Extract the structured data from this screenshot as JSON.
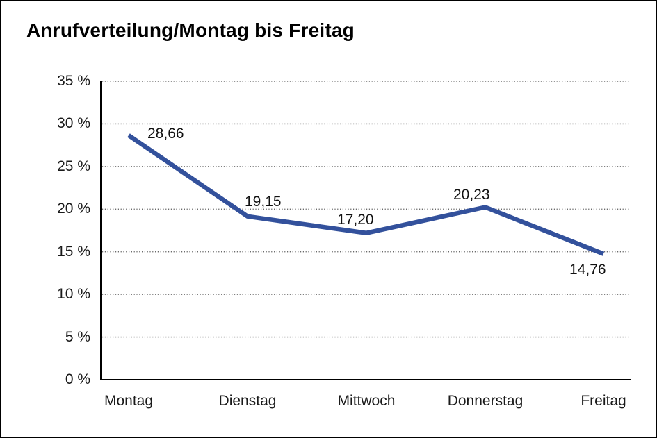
{
  "frame": {
    "background": "#ffffff",
    "border_color": "#000000"
  },
  "title": "Anrufverteilung/Montag bis Freitag",
  "chart_data": {
    "type": "line",
    "title": "Anrufverteilung/Montag bis Freitag",
    "categories": [
      "Montag",
      "Dienstag",
      "Mittwoch",
      "Donnerstag",
      "Freitag"
    ],
    "values": [
      28.66,
      19.15,
      17.2,
      20.23,
      14.76
    ],
    "point_labels": [
      "28,66",
      "19,15",
      "17,20",
      "20,23",
      "14,76"
    ],
    "y_tick_labels_top_to_bottom": [
      "35 %",
      "30 %",
      "25 %",
      "20 %",
      "15 %",
      "10 %",
      "5 %",
      "0 %"
    ],
    "y_tick_values_top_to_bottom": [
      35,
      30,
      25,
      20,
      15,
      10,
      5,
      0
    ],
    "xlabel": "",
    "ylabel": "",
    "ylim": [
      0,
      35
    ],
    "y_tick_step": 5,
    "grid": "horizontal-dotted",
    "legend_position": "none",
    "series_color": "#33519C",
    "axis_color": "#000000",
    "gridline_color": "#555555"
  }
}
